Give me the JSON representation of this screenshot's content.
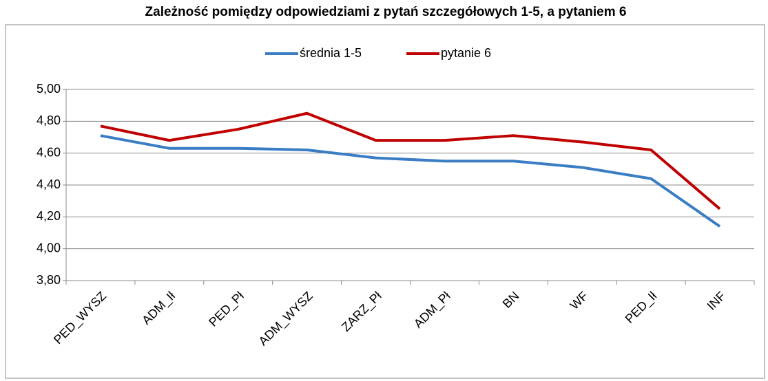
{
  "chart_data": {
    "type": "line",
    "title": "Zależność pomiędzy odpowiedziami z pytań szczegółowych 1-5, a pytaniem 6",
    "categories": [
      "PED_WYSZ",
      "ADM_Ił",
      "PED_Pł",
      "ADM_WYSZ",
      "ZARZ_Pł",
      "ADM_Pł",
      "BN",
      "WF",
      "PED_Ił",
      "INF"
    ],
    "series": [
      {
        "name": "średnia 1-5",
        "color": "#3a7dc4",
        "values": [
          4.71,
          4.63,
          4.63,
          4.62,
          4.57,
          4.55,
          4.55,
          4.51,
          4.44,
          4.14
        ]
      },
      {
        "name": "pytanie 6",
        "color": "#c00000",
        "values": [
          4.77,
          4.68,
          4.75,
          4.85,
          4.68,
          4.68,
          4.71,
          4.67,
          4.62,
          4.25
        ]
      }
    ],
    "ylim": [
      3.8,
      5.0
    ],
    "yticks": [
      {
        "value": 3.8,
        "label": "3,80"
      },
      {
        "value": 4.0,
        "label": "4,00"
      },
      {
        "value": 4.2,
        "label": "4,20"
      },
      {
        "value": 4.4,
        "label": "4,40"
      },
      {
        "value": 4.6,
        "label": "4,60"
      },
      {
        "value": 4.8,
        "label": "4,80"
      },
      {
        "value": 5.0,
        "label": "5,00"
      }
    ],
    "grid": true,
    "legend": "top"
  }
}
